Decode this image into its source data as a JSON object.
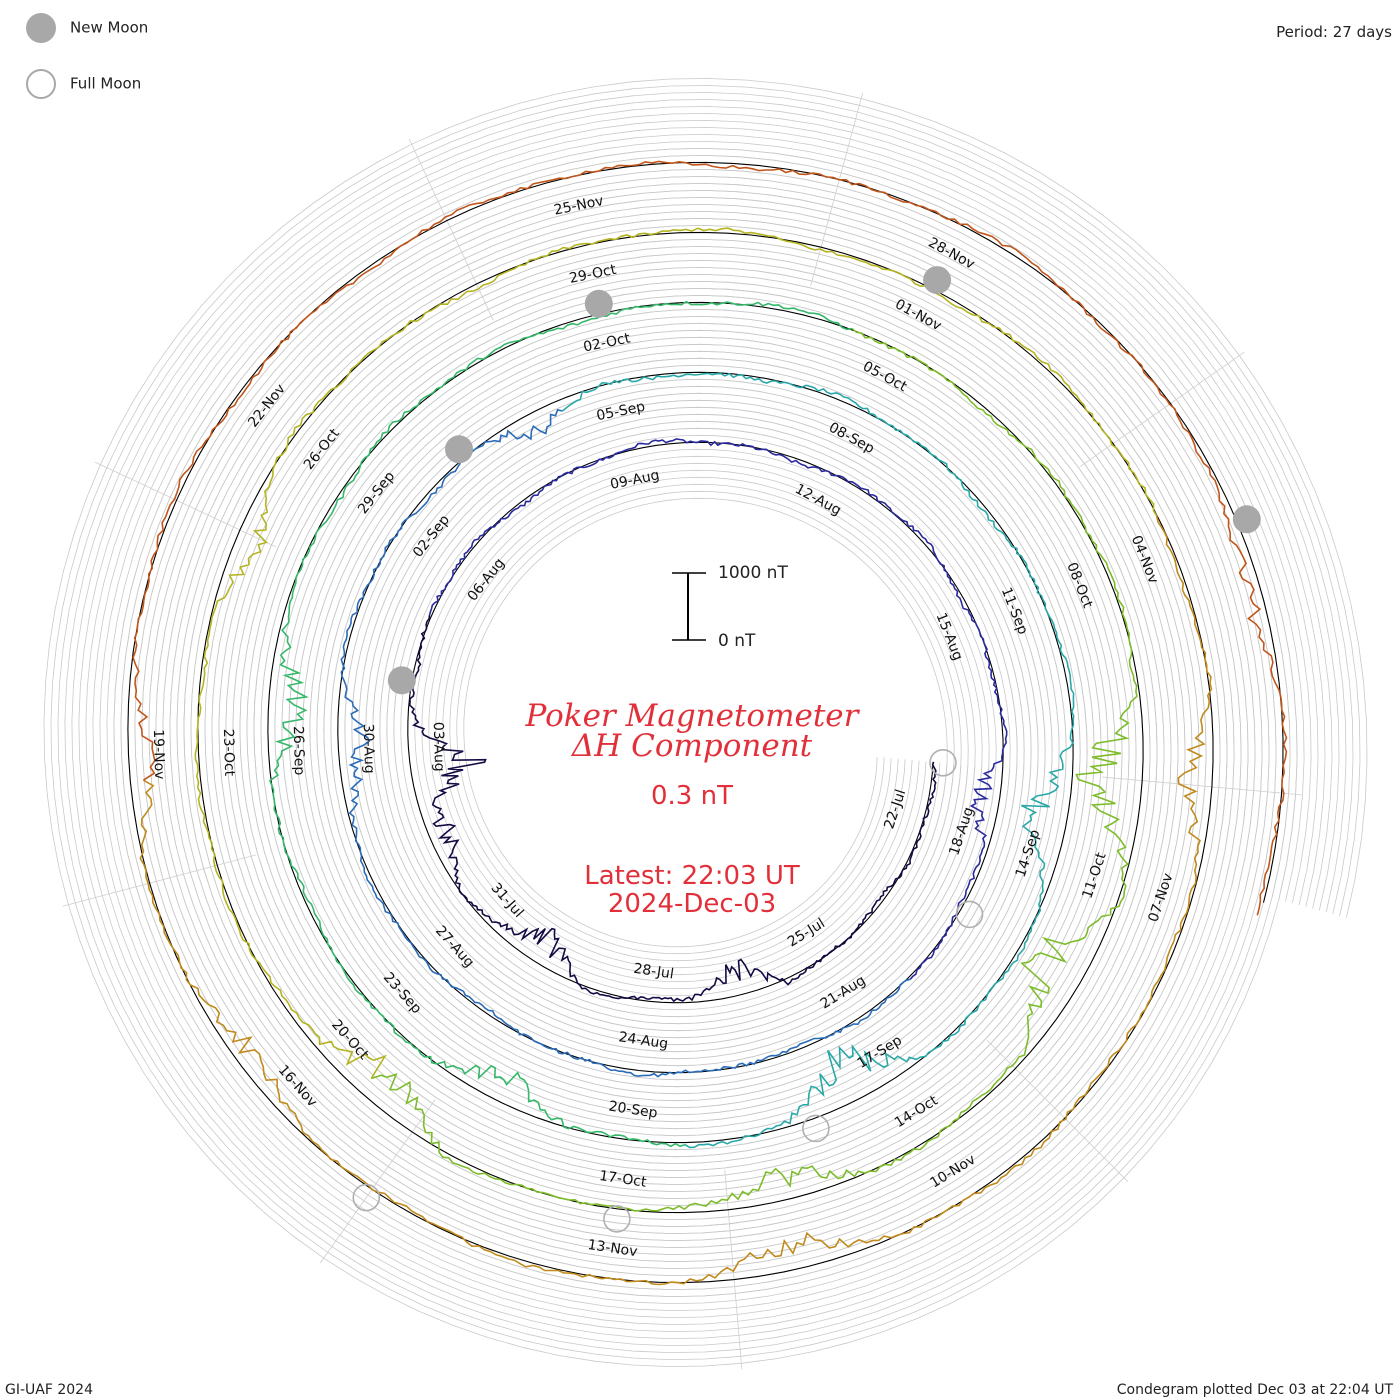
{
  "legend": {
    "new_moon": "New Moon",
    "full_moon": "Full Moon"
  },
  "period_label": "Period: 27 days",
  "footer_left": "GI-UAF 2024",
  "footer_right": "Condegram plotted Dec 03 at 22:04 UT",
  "scale_bar": {
    "top_label": "1000 nT",
    "bottom_label": "0 nT"
  },
  "title_line1": "Poker Magnetometer",
  "title_line2": "ΔH Component",
  "resolution": "0.3 nT",
  "latest_line1": "Latest: 22:03 UT",
  "latest_line2": "2024-Dec-03",
  "chart_data": {
    "type": "spiral-condegram",
    "period_days": 27,
    "start": "2024-Jul-21",
    "end": "2024-Dec-03",
    "series_colors": [
      "#14093a",
      "#2233a8",
      "#2aa8a8",
      "#6ab82a",
      "#b79a1e",
      "#c0661c",
      "#b51818"
    ],
    "colormap": [
      "#160a45",
      "#2a2a9e",
      "#2b6cb8",
      "#2aa8a8",
      "#35b86a",
      "#7dbc2a",
      "#b4b422",
      "#c08a1c",
      "#c0561c",
      "#b51818"
    ],
    "date_ticks": [
      {
        "label": "22-Jul",
        "day": 1
      },
      {
        "label": "25-Jul",
        "day": 4
      },
      {
        "label": "28-Jul",
        "day": 7
      },
      {
        "label": "31-Jul",
        "day": 10
      },
      {
        "label": "03-Aug",
        "day": 13
      },
      {
        "label": "06-Aug",
        "day": 16
      },
      {
        "label": "09-Aug",
        "day": 19
      },
      {
        "label": "12-Aug",
        "day": 22
      },
      {
        "label": "15-Aug",
        "day": 25
      },
      {
        "label": "18-Aug",
        "day": 28
      },
      {
        "label": "21-Aug",
        "day": 31
      },
      {
        "label": "24-Aug",
        "day": 34
      },
      {
        "label": "27-Aug",
        "day": 37
      },
      {
        "label": "30-Aug",
        "day": 40
      },
      {
        "label": "02-Sep",
        "day": 43
      },
      {
        "label": "05-Sep",
        "day": 46
      },
      {
        "label": "08-Sep",
        "day": 49
      },
      {
        "label": "11-Sep",
        "day": 52
      },
      {
        "label": "14-Sep",
        "day": 55
      },
      {
        "label": "17-Sep",
        "day": 58
      },
      {
        "label": "20-Sep",
        "day": 61
      },
      {
        "label": "23-Sep",
        "day": 64
      },
      {
        "label": "26-Sep",
        "day": 67
      },
      {
        "label": "29-Sep",
        "day": 70
      },
      {
        "label": "02-Oct",
        "day": 73
      },
      {
        "label": "05-Oct",
        "day": 76
      },
      {
        "label": "08-Oct",
        "day": 79
      },
      {
        "label": "11-Oct",
        "day": 82
      },
      {
        "label": "14-Oct",
        "day": 85
      },
      {
        "label": "17-Oct",
        "day": 88
      },
      {
        "label": "20-Oct",
        "day": 91
      },
      {
        "label": "23-Oct",
        "day": 94
      },
      {
        "label": "26-Oct",
        "day": 97
      },
      {
        "label": "29-Oct",
        "day": 100
      },
      {
        "label": "01-Nov",
        "day": 103
      },
      {
        "label": "04-Nov",
        "day": 106
      },
      {
        "label": "07-Nov",
        "day": 109
      },
      {
        "label": "10-Nov",
        "day": 112
      },
      {
        "label": "13-Nov",
        "day": 115
      },
      {
        "label": "16-Nov",
        "day": 118
      },
      {
        "label": "19-Nov",
        "day": 121
      },
      {
        "label": "22-Nov",
        "day": 124
      },
      {
        "label": "25-Nov",
        "day": 127
      },
      {
        "label": "28-Nov",
        "day": 130
      }
    ],
    "new_moons": [
      {
        "date": "04-Aug",
        "day": 14
      },
      {
        "date": "03-Sep",
        "day": 44
      },
      {
        "date": "02-Oct",
        "day": 73
      },
      {
        "date": "01-Nov",
        "day": 103
      },
      {
        "date": "01-Dec",
        "day": 133
      }
    ],
    "full_moons": [
      {
        "date": "21-Jul",
        "day": 0
      },
      {
        "date": "19-Aug",
        "day": 29
      },
      {
        "date": "18-Sep",
        "day": 59
      },
      {
        "date": "17-Oct",
        "day": 88
      },
      {
        "date": "15-Nov",
        "day": 117
      }
    ],
    "disturbances": [
      {
        "day": 12.6,
        "amp": 0.75
      },
      {
        "day": 11.5,
        "amp": 0.3
      },
      {
        "day": 5.5,
        "amp": 0.35
      },
      {
        "day": 9.0,
        "amp": 0.4
      },
      {
        "day": 27.5,
        "amp": 0.3
      },
      {
        "day": 40.0,
        "amp": 0.35
      },
      {
        "day": 45.0,
        "amp": 0.25
      },
      {
        "day": 54.5,
        "amp": 0.45
      },
      {
        "day": 58.5,
        "amp": 0.55
      },
      {
        "day": 62.5,
        "amp": 0.3
      },
      {
        "day": 67.5,
        "amp": 0.45
      },
      {
        "day": 81.0,
        "amp": 0.7
      },
      {
        "day": 83.0,
        "amp": 0.6
      },
      {
        "day": 86.5,
        "amp": 0.4
      },
      {
        "day": 90.5,
        "amp": 0.45
      },
      {
        "day": 96.0,
        "amp": 0.25
      },
      {
        "day": 108.0,
        "amp": 0.35
      },
      {
        "day": 113.5,
        "amp": 0.3
      },
      {
        "day": 118.5,
        "amp": 0.25
      },
      {
        "day": 121.0,
        "amp": 0.25
      },
      {
        "day": 133.5,
        "amp": 0.25
      }
    ]
  }
}
